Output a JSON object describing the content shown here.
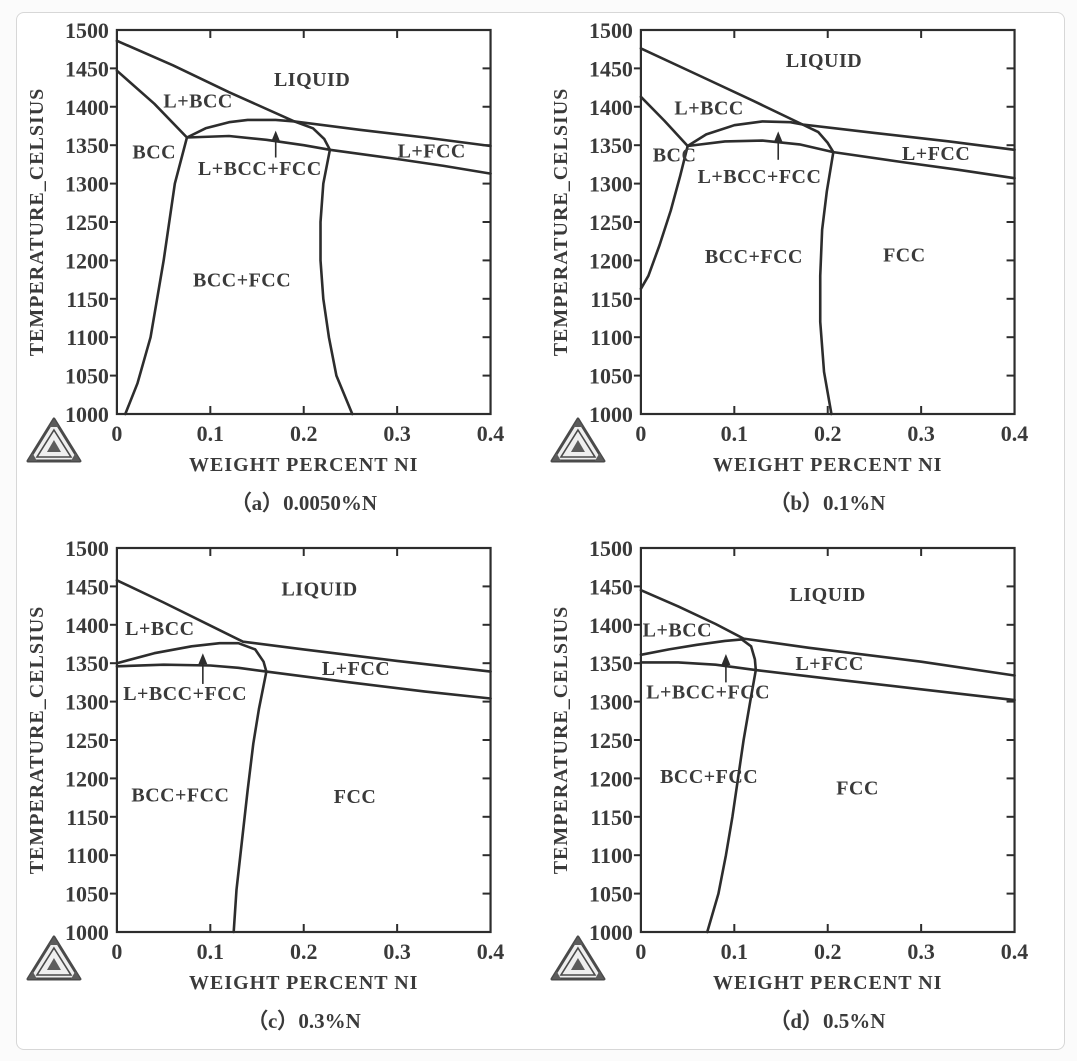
{
  "page": {
    "background": "#fbfbfb",
    "card_background": "#ffffff",
    "card_border": "#d7d7d7"
  },
  "style": {
    "line_color": "#2d2d2d",
    "text_color": "#3a3a3a",
    "logo_fill": "#efefef",
    "logo_stroke": "#4a4a4a",
    "logo_dark": "#5c5c5c"
  },
  "icons": {
    "logo": "thermocalc-triangle-logo"
  },
  "chart_data": [
    {
      "id": "a",
      "type": "line",
      "caption": "（a）0.0050%N",
      "xlabel": "WEIGHT PERCENT NI",
      "ylabel": "TEMPERATURE_CELSIUS",
      "xlim": [
        0,
        0.4
      ],
      "ylim": [
        1000,
        1500
      ],
      "xticks": [
        0,
        0.1,
        0.2,
        0.3,
        0.4
      ],
      "yticks": [
        1000,
        1050,
        1100,
        1150,
        1200,
        1250,
        1300,
        1350,
        1400,
        1450,
        1500
      ],
      "grid": false,
      "legend": "none",
      "series": [
        {
          "name": "liquidus",
          "points": [
            [
              0,
              1486
            ],
            [
              0.06,
              1454
            ],
            [
              0.12,
              1419
            ],
            [
              0.19,
              1381
            ],
            [
              0.26,
              1370
            ],
            [
              0.33,
              1360
            ],
            [
              0.4,
              1349
            ]
          ]
        },
        {
          "name": "bcc-solidus",
          "points": [
            [
              0,
              1447
            ],
            [
              0.04,
              1404
            ],
            [
              0.075,
              1360
            ]
          ]
        },
        {
          "name": "peritectic-arc",
          "points": [
            [
              0.075,
              1360
            ],
            [
              0.095,
              1372
            ],
            [
              0.12,
              1380
            ],
            [
              0.14,
              1383
            ],
            [
              0.17,
              1383
            ],
            [
              0.19,
              1381
            ],
            [
              0.21,
              1372
            ],
            [
              0.222,
              1358
            ],
            [
              0.228,
              1344
            ]
          ]
        },
        {
          "name": "fcc-solidus",
          "points": [
            [
              0.075,
              1360
            ],
            [
              0.12,
              1362
            ],
            [
              0.16,
              1357
            ],
            [
              0.2,
              1350
            ],
            [
              0.228,
              1344
            ],
            [
              0.3,
              1332
            ],
            [
              0.35,
              1323
            ],
            [
              0.4,
              1313
            ]
          ]
        },
        {
          "name": "bcc-solvus",
          "points": [
            [
              0.075,
              1360
            ],
            [
              0.062,
              1300
            ],
            [
              0.05,
              1200
            ],
            [
              0.036,
              1100
            ],
            [
              0.022,
              1040
            ],
            [
              0.009,
              1000
            ]
          ]
        },
        {
          "name": "fcc-solvus",
          "points": [
            [
              0.228,
              1344
            ],
            [
              0.221,
              1300
            ],
            [
              0.218,
              1250
            ],
            [
              0.218,
              1200
            ],
            [
              0.221,
              1150
            ],
            [
              0.227,
              1100
            ],
            [
              0.235,
              1050
            ],
            [
              0.252,
              1000
            ]
          ]
        }
      ],
      "region_labels": [
        {
          "text": "LIQUID",
          "x": 0.209,
          "y": 1436
        },
        {
          "text": "L+BCC",
          "x": 0.087,
          "y": 1408
        },
        {
          "text": "BCC",
          "x": 0.04,
          "y": 1342
        },
        {
          "text": "L+BCC+FCC",
          "x": 0.153,
          "y": 1320
        },
        {
          "text": "L+FCC",
          "x": 0.337,
          "y": 1343
        },
        {
          "text": "BCC+FCC",
          "x": 0.134,
          "y": 1175
        }
      ],
      "arrow": {
        "x": 0.17,
        "y_from": 1334,
        "y_to": 1369
      }
    },
    {
      "id": "b",
      "type": "line",
      "caption": "（b）0.1%N",
      "xlabel": "WEIGHT PERCENT NI",
      "ylabel": "TEMPERATURE_CELSIUS",
      "xlim": [
        0,
        0.4
      ],
      "ylim": [
        1000,
        1500
      ],
      "xticks": [
        0,
        0.1,
        0.2,
        0.3,
        0.4
      ],
      "yticks": [
        1000,
        1050,
        1100,
        1150,
        1200,
        1250,
        1300,
        1350,
        1400,
        1450,
        1500
      ],
      "grid": false,
      "legend": "none",
      "series": [
        {
          "name": "liquidus",
          "points": [
            [
              0,
              1476
            ],
            [
              0.06,
              1442
            ],
            [
              0.12,
              1408
            ],
            [
              0.173,
              1377
            ],
            [
              0.25,
              1366
            ],
            [
              0.33,
              1355
            ],
            [
              0.4,
              1344
            ]
          ]
        },
        {
          "name": "bcc-solidus",
          "points": [
            [
              0,
              1413
            ],
            [
              0.025,
              1382
            ],
            [
              0.05,
              1349
            ]
          ]
        },
        {
          "name": "peritectic-arc",
          "points": [
            [
              0.05,
              1349
            ],
            [
              0.07,
              1364
            ],
            [
              0.1,
              1376
            ],
            [
              0.13,
              1381
            ],
            [
              0.16,
              1380
            ],
            [
              0.173,
              1377
            ],
            [
              0.19,
              1367
            ],
            [
              0.2,
              1353
            ],
            [
              0.206,
              1341
            ]
          ]
        },
        {
          "name": "fcc-solidus",
          "points": [
            [
              0.05,
              1349
            ],
            [
              0.09,
              1355
            ],
            [
              0.13,
              1356
            ],
            [
              0.17,
              1351
            ],
            [
              0.206,
              1341
            ],
            [
              0.28,
              1328
            ],
            [
              0.34,
              1318
            ],
            [
              0.4,
              1307
            ]
          ]
        },
        {
          "name": "bcc-solvus",
          "points": [
            [
              0.05,
              1349
            ],
            [
              0.042,
              1310
            ],
            [
              0.032,
              1265
            ],
            [
              0.02,
              1220
            ],
            [
              0.008,
              1180
            ],
            [
              0,
              1163
            ]
          ]
        },
        {
          "name": "fcc-solvus",
          "points": [
            [
              0.206,
              1341
            ],
            [
              0.199,
              1290
            ],
            [
              0.194,
              1240
            ],
            [
              0.192,
              1180
            ],
            [
              0.192,
              1120
            ],
            [
              0.196,
              1055
            ],
            [
              0.204,
              1000
            ]
          ]
        }
      ],
      "region_labels": [
        {
          "text": "LIQUID",
          "x": 0.196,
          "y": 1461
        },
        {
          "text": "L+BCC",
          "x": 0.073,
          "y": 1399
        },
        {
          "text": "BCC",
          "x": 0.036,
          "y": 1338
        },
        {
          "text": "L+BCC+FCC",
          "x": 0.127,
          "y": 1310
        },
        {
          "text": "L+FCC",
          "x": 0.316,
          "y": 1340
        },
        {
          "text": "BCC+FCC",
          "x": 0.121,
          "y": 1206
        },
        {
          "text": "FCC",
          "x": 0.282,
          "y": 1208
        }
      ],
      "arrow": {
        "x": 0.147,
        "y_from": 1331,
        "y_to": 1368
      }
    },
    {
      "id": "c",
      "type": "line",
      "caption": "（c）0.3%N",
      "xlabel": "WEIGHT PERCENT NI",
      "ylabel": "TEMPERATURE_CELSIUS",
      "xlim": [
        0,
        0.4
      ],
      "ylim": [
        1000,
        1500
      ],
      "xticks": [
        0,
        0.1,
        0.2,
        0.3,
        0.4
      ],
      "yticks": [
        1000,
        1050,
        1100,
        1150,
        1200,
        1250,
        1300,
        1350,
        1400,
        1450,
        1500
      ],
      "grid": false,
      "legend": "none",
      "series": [
        {
          "name": "liquidus",
          "points": [
            [
              0,
              1458
            ],
            [
              0.05,
              1429
            ],
            [
              0.1,
              1399
            ],
            [
              0.135,
              1378
            ],
            [
              0.2,
              1368
            ],
            [
              0.3,
              1353
            ],
            [
              0.4,
              1339
            ]
          ]
        },
        {
          "name": "peritectic-arc",
          "points": [
            [
              0,
              1350
            ],
            [
              0.04,
              1363
            ],
            [
              0.08,
              1372
            ],
            [
              0.11,
              1376
            ],
            [
              0.13,
              1376
            ],
            [
              0.148,
              1368
            ],
            [
              0.157,
              1352
            ],
            [
              0.16,
              1339
            ]
          ]
        },
        {
          "name": "fcc-solidus",
          "points": [
            [
              0,
              1346
            ],
            [
              0.05,
              1348
            ],
            [
              0.1,
              1347
            ],
            [
              0.13,
              1344
            ],
            [
              0.16,
              1339
            ],
            [
              0.25,
              1325
            ],
            [
              0.33,
              1313
            ],
            [
              0.4,
              1304
            ]
          ]
        },
        {
          "name": "fcc-solvus",
          "points": [
            [
              0.16,
              1339
            ],
            [
              0.152,
              1290
            ],
            [
              0.146,
              1245
            ],
            [
              0.14,
              1185
            ],
            [
              0.134,
              1120
            ],
            [
              0.128,
              1055
            ],
            [
              0.125,
              1000
            ]
          ]
        }
      ],
      "region_labels": [
        {
          "text": "LIQUID",
          "x": 0.217,
          "y": 1447
        },
        {
          "text": "L+BCC",
          "x": 0.046,
          "y": 1396
        },
        {
          "text": "L+FCC",
          "x": 0.256,
          "y": 1344
        },
        {
          "text": "L+BCC+FCC",
          "x": 0.073,
          "y": 1311
        },
        {
          "text": "BCC+FCC",
          "x": 0.068,
          "y": 1179
        },
        {
          "text": "FCC",
          "x": 0.255,
          "y": 1177
        }
      ],
      "arrow": {
        "x": 0.092,
        "y_from": 1323,
        "y_to": 1363
      }
    },
    {
      "id": "d",
      "type": "line",
      "caption": "（d）0.5%N",
      "xlabel": "WEIGHT PERCENT NI",
      "ylabel": "TEMPERATURE_CELSIUS",
      "xlim": [
        0,
        0.4
      ],
      "ylim": [
        1000,
        1500
      ],
      "xticks": [
        0,
        0.1,
        0.2,
        0.3,
        0.4
      ],
      "yticks": [
        1000,
        1050,
        1100,
        1150,
        1200,
        1250,
        1300,
        1350,
        1400,
        1450,
        1500
      ],
      "grid": false,
      "legend": "none",
      "series": [
        {
          "name": "liquidus",
          "points": [
            [
              0,
              1445
            ],
            [
              0.04,
              1424
            ],
            [
              0.08,
              1401
            ],
            [
              0.11,
              1382
            ],
            [
              0.18,
              1370
            ],
            [
              0.3,
              1352
            ],
            [
              0.4,
              1334
            ]
          ]
        },
        {
          "name": "peritectic-arc",
          "points": [
            [
              0,
              1361
            ],
            [
              0.03,
              1368
            ],
            [
              0.06,
              1374
            ],
            [
              0.09,
              1379
            ],
            [
              0.108,
              1381
            ],
            [
              0.118,
              1372
            ],
            [
              0.122,
              1355
            ],
            [
              0.123,
              1341
            ]
          ]
        },
        {
          "name": "fcc-solidus",
          "points": [
            [
              0,
              1351
            ],
            [
              0.04,
              1351
            ],
            [
              0.08,
              1348
            ],
            [
              0.105,
              1344
            ],
            [
              0.123,
              1341
            ],
            [
              0.2,
              1330
            ],
            [
              0.3,
              1316
            ],
            [
              0.4,
              1302
            ]
          ]
        },
        {
          "name": "fcc-solvus",
          "points": [
            [
              0.123,
              1341
            ],
            [
              0.117,
              1300
            ],
            [
              0.11,
              1250
            ],
            [
              0.104,
              1200
            ],
            [
              0.098,
              1150
            ],
            [
              0.091,
              1100
            ],
            [
              0.083,
              1050
            ],
            [
              0.071,
              1000
            ]
          ]
        }
      ],
      "region_labels": [
        {
          "text": "LIQUID",
          "x": 0.2,
          "y": 1440
        },
        {
          "text": "L+BCC",
          "x": 0.039,
          "y": 1394
        },
        {
          "text": "L+FCC",
          "x": 0.202,
          "y": 1350
        },
        {
          "text": "L+BCC+FCC",
          "x": 0.072,
          "y": 1313
        },
        {
          "text": "BCC+FCC",
          "x": 0.073,
          "y": 1203
        },
        {
          "text": "FCC",
          "x": 0.232,
          "y": 1188
        }
      ],
      "arrow": {
        "x": 0.091,
        "y_from": 1325,
        "y_to": 1362
      }
    }
  ]
}
